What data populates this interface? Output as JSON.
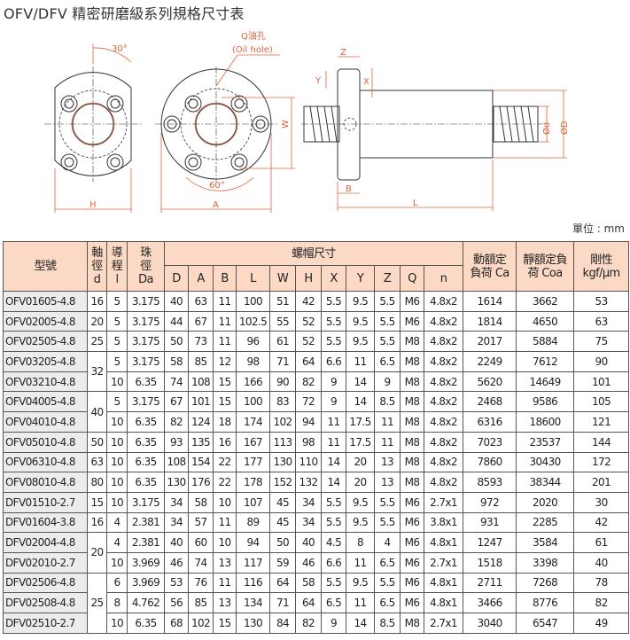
{
  "title": "OFV/DFV 精密研磨級系列規格尺寸表",
  "unit": "單位 : mm",
  "colors": {
    "header_bg": "#fbd9c5",
    "model_bg": "#ececec",
    "dimension_line": "#e0633a"
  },
  "drawing": {
    "angle_30": "30°",
    "oil_hole": "Q油孔",
    "oil_hole_en": "(Oil hole)",
    "H": "H",
    "A": "A",
    "W": "W",
    "angle_60": "60°",
    "Z": "Z",
    "Y": "Y",
    "X": "X",
    "B": "B",
    "L": "L",
    "d": "Ød",
    "D": "ØD"
  },
  "table": {
    "header": {
      "model": "型號",
      "d": "軸\n徑\nd",
      "l": "導\n程\nl",
      "da": "珠\n徑\nDa",
      "nut": "螺帽尺寸",
      "nut_cols": [
        "D",
        "A",
        "B",
        "L",
        "W",
        "H",
        "X",
        "Y",
        "Z",
        "Q",
        "n"
      ],
      "ca": "動額定\n負荷 Ca",
      "coa": "靜額定負\n荷 Coa",
      "rigidity": "剛性\nkgf/μm"
    },
    "rows": [
      [
        "OFV01605-4.8",
        "16",
        "5",
        "3.175",
        "40",
        "63",
        "11",
        "100",
        "51",
        "42",
        "5.5",
        "9.5",
        "5.5",
        "M6",
        "4.8x2",
        "1614",
        "3662",
        "53"
      ],
      [
        "OFV02005-4.8",
        "20",
        "5",
        "3.175",
        "44",
        "67",
        "11",
        "102.5",
        "55",
        "52",
        "5.5",
        "9.5",
        "5.5",
        "M6",
        "4.8x2",
        "1814",
        "4650",
        "63"
      ],
      [
        "OFV02505-4.8",
        "25",
        "5",
        "3.175",
        "50",
        "73",
        "11",
        "96",
        "61",
        "52",
        "5.5",
        "9.5",
        "5.5",
        "M8",
        "4.8x2",
        "2017",
        "5884",
        "75"
      ],
      [
        "OFV03205-4.8",
        "32",
        "5",
        "3.175",
        "58",
        "85",
        "12",
        "98",
        "71",
        "64",
        "6.6",
        "11",
        "6.5",
        "M8",
        "4.8x2",
        "2249",
        "7612",
        "90"
      ],
      [
        "OFV03210-4.8",
        null,
        "10",
        "6.35",
        "74",
        "108",
        "15",
        "166",
        "90",
        "82",
        "9",
        "14",
        "9",
        "M8",
        "4.8x2",
        "5620",
        "14649",
        "101"
      ],
      [
        "OFV04005-4.8",
        "40",
        "5",
        "3.175",
        "67",
        "101",
        "15",
        "100",
        "83",
        "72",
        "9",
        "14",
        "8.5",
        "M8",
        "4.8x2",
        "2468",
        "9586",
        "105"
      ],
      [
        "OFV04010-4.8",
        null,
        "10",
        "6.35",
        "82",
        "124",
        "18",
        "174",
        "102",
        "94",
        "11",
        "17.5",
        "11",
        "M8",
        "4.8x2",
        "6316",
        "18600",
        "121"
      ],
      [
        "OFV05010-4.8",
        "50",
        "10",
        "6.35",
        "93",
        "135",
        "16",
        "167",
        "113",
        "98",
        "11",
        "17.5",
        "11",
        "M8",
        "4.8x2",
        "7023",
        "23537",
        "144"
      ],
      [
        "OFV06310-4.8",
        "63",
        "10",
        "6.35",
        "108",
        "154",
        "22",
        "177",
        "130",
        "110",
        "14",
        "20",
        "13",
        "M8",
        "4.8x2",
        "7860",
        "30430",
        "172"
      ],
      [
        "OFV08010-4.8",
        "80",
        "10",
        "6.35",
        "130",
        "176",
        "22",
        "178",
        "152",
        "132",
        "14",
        "20",
        "13",
        "M8",
        "4.8x2",
        "8593",
        "38344",
        "201"
      ],
      [
        "DFV01510-2.7",
        "15",
        "10",
        "3.175",
        "34",
        "58",
        "10",
        "107",
        "45",
        "34",
        "5.5",
        "9.5",
        "5.5",
        "M6",
        "2.7x1",
        "972",
        "2020",
        "30"
      ],
      [
        "DFV01604-3.8",
        "16",
        "4",
        "2.381",
        "34",
        "57",
        "11",
        "89",
        "45",
        "34",
        "5.5",
        "9.5",
        "5.5",
        "M6",
        "3.8x1",
        "931",
        "2285",
        "42"
      ],
      [
        "DFV02004-4.8",
        "20",
        "4",
        "2.381",
        "40",
        "60",
        "10",
        "94",
        "50",
        "40",
        "4.5",
        "8",
        "4",
        "M6",
        "4.8x1",
        "1247",
        "3584",
        "61"
      ],
      [
        "DFV02010-2.7",
        null,
        "10",
        "3.969",
        "46",
        "74",
        "13",
        "117",
        "59",
        "46",
        "6.6",
        "11",
        "6.5",
        "M6",
        "2.7x1",
        "1518",
        "3398",
        "40"
      ],
      [
        "DFV02506-4.8",
        "25",
        "6",
        "3.969",
        "53",
        "76",
        "11",
        "116",
        "64",
        "58",
        "5.5",
        "9.5",
        "5.5",
        "M6",
        "4.8x1",
        "2711",
        "7268",
        "78"
      ],
      [
        "DFV02508-4.8",
        null,
        "8",
        "4.762",
        "56",
        "85",
        "13",
        "134",
        "71",
        "64",
        "6.5",
        "11",
        "6.5",
        "M6",
        "4.8x1",
        "3466",
        "8776",
        "82"
      ],
      [
        "DFV02510-2.7",
        null,
        "10",
        "6.35",
        "68",
        "102",
        "15",
        "130",
        "84",
        "82",
        "9",
        "14",
        "8.5",
        "M8",
        "2.7x1",
        "3040",
        "6547",
        "49"
      ]
    ],
    "rowspans": {
      "3": 2,
      "5": 2,
      "12": 2,
      "14": 3
    }
  }
}
